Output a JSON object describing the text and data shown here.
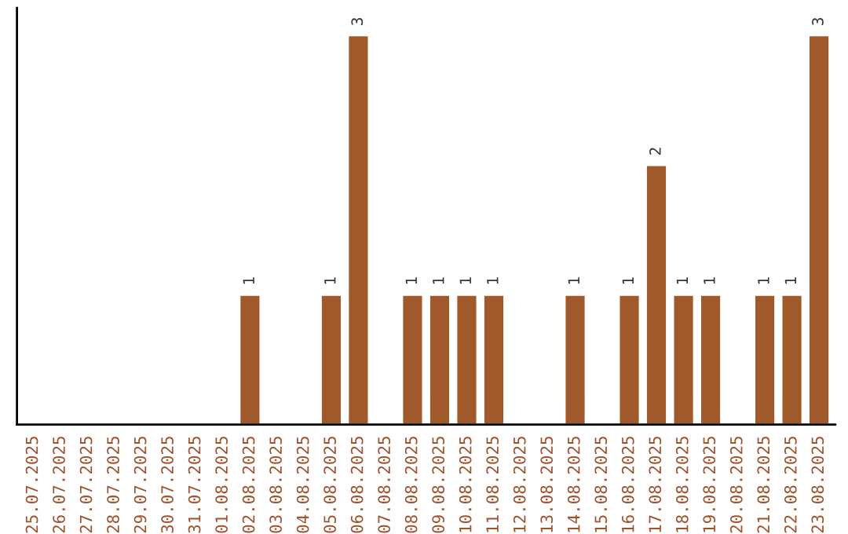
{
  "chart_data": {
    "type": "bar",
    "categories": [
      "25.07.2025",
      "26.07.2025",
      "27.07.2025",
      "28.07.2025",
      "29.07.2025",
      "30.07.2025",
      "31.07.2025",
      "01.08.2025",
      "02.08.2025",
      "03.08.2025",
      "04.08.2025",
      "05.08.2025",
      "06.08.2025",
      "07.08.2025",
      "08.08.2025",
      "09.08.2025",
      "10.08.2025",
      "11.08.2025",
      "12.08.2025",
      "13.08.2025",
      "14.08.2025",
      "15.08.2025",
      "16.08.2025",
      "17.08.2025",
      "18.08.2025",
      "19.08.2025",
      "20.08.2025",
      "21.08.2025",
      "22.08.2025",
      "23.08.2025"
    ],
    "values": [
      null,
      null,
      null,
      null,
      null,
      null,
      null,
      null,
      1,
      null,
      null,
      1,
      3,
      null,
      1,
      1,
      1,
      1,
      null,
      null,
      1,
      null,
      1,
      2,
      1,
      1,
      null,
      1,
      1,
      3
    ],
    "value_labels": [
      null,
      null,
      null,
      null,
      null,
      null,
      null,
      null,
      "1",
      null,
      null,
      "1",
      "3",
      null,
      "1",
      "1",
      "1",
      "1",
      null,
      null,
      "1",
      null,
      "1",
      "2",
      "1",
      "1",
      null,
      "1",
      "1",
      "3"
    ],
    "color": "#a0592a",
    "grid": false,
    "legend": false
  }
}
